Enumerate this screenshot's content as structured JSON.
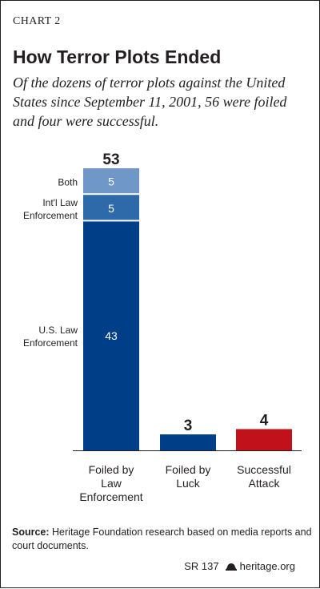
{
  "header": {
    "kicker": "CHART 2",
    "title": "How Terror Plots Ended",
    "subtitle": "Of the dozens of terror plots against the United States since September 11, 2001, 56 were foiled and four were successful."
  },
  "colors": {
    "us_law": "#003f87",
    "intl_law": "#2e6aa9",
    "both": "#6f98c8",
    "luck": "#003f87",
    "attack": "#c1121c",
    "text": "#231f20"
  },
  "chart_data": {
    "type": "bar",
    "stacked": true,
    "ylim": [
      0,
      53
    ],
    "grid": false,
    "categories": [
      [
        "Foiled by",
        "Law",
        "Enforcement"
      ],
      [
        "Foiled by",
        "Luck"
      ],
      [
        "Successful",
        "Attack"
      ]
    ],
    "totals": [
      53,
      3,
      4
    ],
    "series": [
      {
        "name": [
          "U.S. Law",
          "Enforcement"
        ],
        "values": [
          43,
          3,
          4
        ]
      },
      {
        "name": [
          "Int'l Law",
          "Enforcement"
        ],
        "values": [
          5,
          0,
          0
        ]
      },
      {
        "name": [
          "Both"
        ],
        "values": [
          5,
          0,
          0
        ]
      }
    ]
  },
  "footer": {
    "source_label": "Source:",
    "source_text": "Heritage Foundation research based on media reports and court documents.",
    "report_id": "SR 137",
    "site": "heritage.org",
    "icon": "heritage-bell-icon"
  }
}
